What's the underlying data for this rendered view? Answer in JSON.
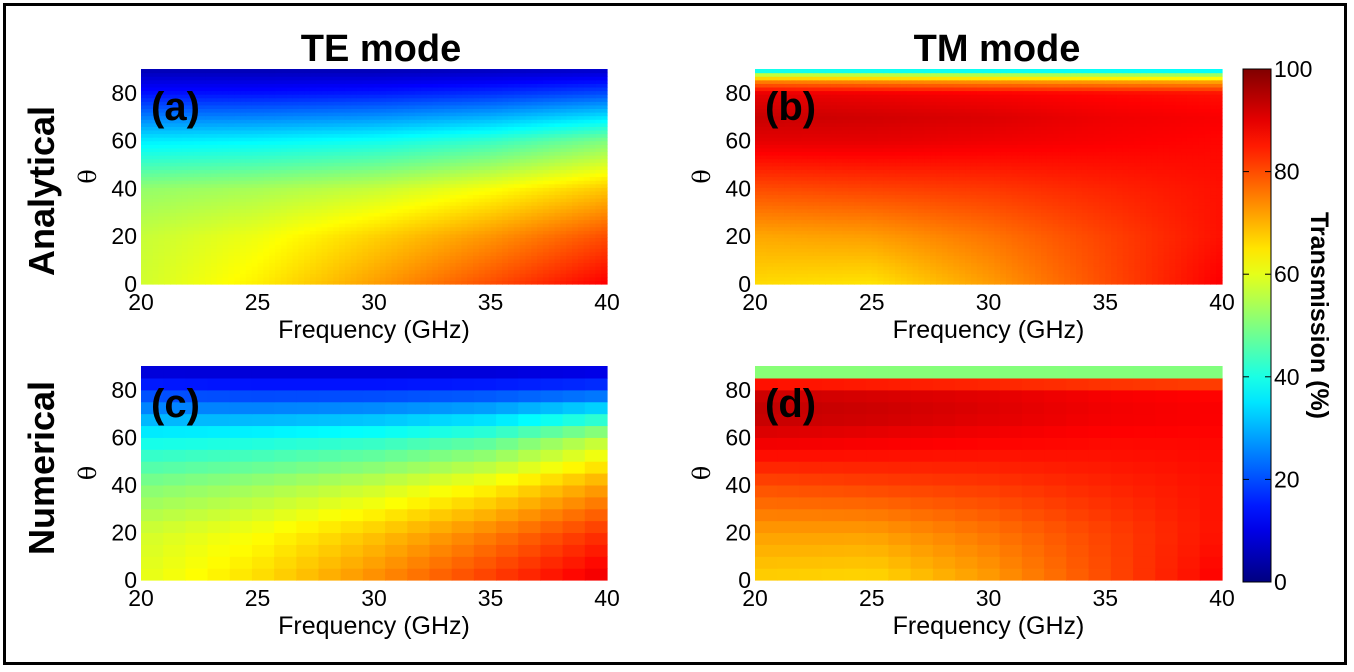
{
  "figure": {
    "column_titles": [
      "TE mode",
      "TM mode"
    ],
    "row_titles": [
      "Analytical",
      "Numerical"
    ]
  },
  "chart_data": [
    {
      "type": "heatmap",
      "panel_label": "(a)",
      "mode": "TE",
      "method": "Analytical",
      "xlabel": "Frequency (GHz)",
      "ylabel": "θ",
      "xlim": [
        20,
        40
      ],
      "ylim": [
        0,
        90
      ],
      "xticks": [
        "20",
        "25",
        "30",
        "35",
        "40"
      ],
      "yticks": [
        "0",
        "20",
        "40",
        "60",
        "80"
      ],
      "shading": "smooth",
      "x": [
        20,
        25,
        30,
        35,
        40
      ],
      "y": [
        0,
        20,
        40,
        60,
        80,
        90
      ],
      "z": [
        [
          58,
          64,
          72,
          80,
          88
        ],
        [
          57,
          61,
          67,
          73,
          80
        ],
        [
          52,
          54,
          57,
          62,
          68
        ],
        [
          36,
          37,
          39,
          43,
          50
        ],
        [
          14,
          14,
          15,
          17,
          20
        ],
        [
          5,
          5,
          5,
          6,
          7
        ]
      ]
    },
    {
      "type": "heatmap",
      "panel_label": "(b)",
      "mode": "TM",
      "method": "Analytical",
      "xlabel": "Frequency (GHz)",
      "ylabel": "θ",
      "xlim": [
        20,
        40
      ],
      "ylim": [
        0,
        90
      ],
      "xticks": [
        "20",
        "25",
        "30",
        "35",
        "40"
      ],
      "yticks": [
        "0",
        "20",
        "40",
        "60",
        "80"
      ],
      "shading": "smooth",
      "x": [
        20,
        25,
        30,
        35,
        40
      ],
      "y": [
        0,
        20,
        40,
        60,
        70,
        80,
        85,
        88,
        90
      ],
      "z": [
        [
          66,
          65,
          72,
          80,
          88
        ],
        [
          71,
          72,
          76,
          81,
          86
        ],
        [
          80,
          81,
          82,
          84,
          86
        ],
        [
          90,
          90,
          89,
          88,
          87
        ],
        [
          93,
          92,
          91,
          89,
          88
        ],
        [
          90,
          89,
          88,
          87,
          86
        ],
        [
          75,
          74,
          73,
          72,
          71
        ],
        [
          55,
          54,
          53,
          52,
          51
        ],
        [
          30,
          30,
          30,
          30,
          30
        ]
      ]
    },
    {
      "type": "heatmap",
      "panel_label": "(c)",
      "mode": "TE",
      "method": "Numerical",
      "xlabel": "Frequency (GHz)",
      "ylabel": "θ",
      "xlim": [
        20,
        40
      ],
      "ylim": [
        0,
        90
      ],
      "xticks": [
        "20",
        "25",
        "30",
        "35",
        "40"
      ],
      "yticks": [
        "0",
        "20",
        "40",
        "60",
        "80"
      ],
      "shading": "blocky",
      "x": [
        20,
        25,
        30,
        35,
        40
      ],
      "y": [
        0,
        20,
        40,
        60,
        80,
        90
      ],
      "z": [
        [
          60,
          66,
          74,
          82,
          90
        ],
        [
          58,
          62,
          68,
          75,
          83
        ],
        [
          50,
          53,
          57,
          63,
          72
        ],
        [
          38,
          39,
          41,
          45,
          56
        ],
        [
          18,
          17,
          17,
          18,
          20
        ],
        [
          6,
          6,
          6,
          6,
          7
        ]
      ]
    },
    {
      "type": "heatmap",
      "panel_label": "(d)",
      "mode": "TM",
      "method": "Numerical",
      "xlabel": "Frequency (GHz)",
      "ylabel": "θ",
      "xlim": [
        20,
        40
      ],
      "ylim": [
        0,
        90
      ],
      "xticks": [
        "20",
        "25",
        "30",
        "35",
        "40"
      ],
      "yticks": [
        "0",
        "20",
        "40",
        "60",
        "80"
      ],
      "shading": "blocky",
      "x": [
        20,
        25,
        30,
        35,
        40
      ],
      "y": [
        0,
        20,
        40,
        60,
        70,
        80,
        85,
        88,
        90
      ],
      "z": [
        [
          67,
          66,
          72,
          80,
          88
        ],
        [
          72,
          72,
          76,
          81,
          86
        ],
        [
          80,
          81,
          82,
          84,
          86
        ],
        [
          90,
          89,
          88,
          87,
          87
        ],
        [
          94,
          93,
          91,
          89,
          88
        ],
        [
          92,
          91,
          90,
          88,
          87
        ],
        [
          80,
          79,
          78,
          77,
          76
        ],
        [
          45,
          45,
          45,
          45,
          45
        ],
        [
          45,
          45,
          45,
          45,
          45
        ]
      ]
    }
  ],
  "colorbar": {
    "label": "Transmission (%)",
    "range": [
      0,
      100
    ],
    "ticks": [
      "0",
      "20",
      "40",
      "60",
      "80",
      "100"
    ],
    "colormap": "jet",
    "colors": [
      "#00008f",
      "#0000ff",
      "#00ffff",
      "#ffff00",
      "#ff0000",
      "#800000"
    ]
  }
}
